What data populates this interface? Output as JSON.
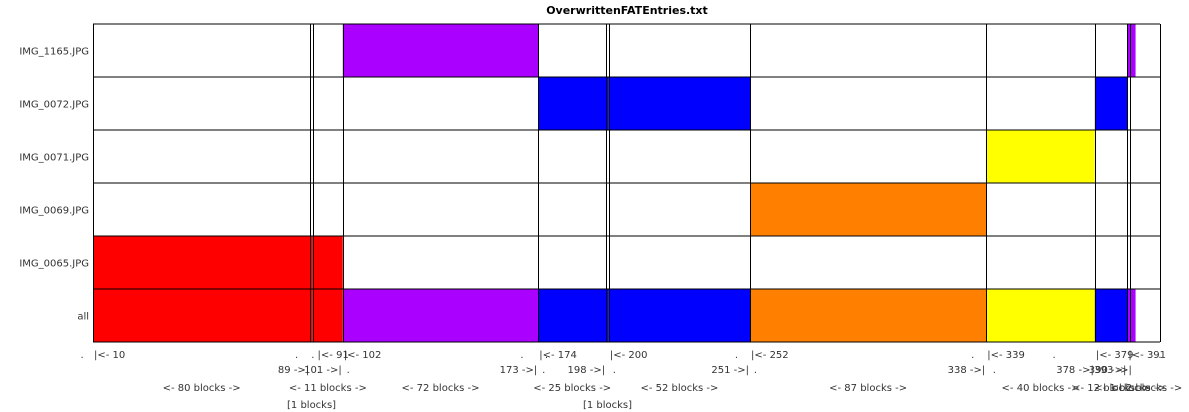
{
  "chart_data": {
    "type": "bar",
    "title": "OverwrittenFATEntries.txt",
    "xlim": [
      10,
      403
    ],
    "rows": [
      "all",
      "IMG_0065.JPG",
      "IMG_0069.JPG",
      "IMG_0071.JPG",
      "IMG_0072.JPG",
      "IMG_1165.JPG"
    ],
    "boundaries": [
      10,
      90,
      91,
      102,
      174,
      199,
      200,
      252,
      339,
      379,
      391,
      392,
      403
    ],
    "segments": [
      {
        "file": "IMG_0065.JPG",
        "start": 10,
        "end": 90,
        "color": "#ff0000"
      },
      {
        "file": "IMG_0065.JPG",
        "start": 90,
        "end": 91,
        "color": "#ff0000"
      },
      {
        "file": "IMG_0065.JPG",
        "start": 91,
        "end": 102,
        "color": "#ff0000"
      },
      {
        "file": "IMG_1165.JPG",
        "start": 102,
        "end": 174,
        "color": "#aa00ff"
      },
      {
        "file": "IMG_0072.JPG",
        "start": 174,
        "end": 199,
        "color": "#0000ff"
      },
      {
        "file": "IMG_0072.JPG",
        "start": 199,
        "end": 200,
        "color": "#0000ff"
      },
      {
        "file": "IMG_0072.JPG",
        "start": 200,
        "end": 252,
        "color": "#0000ff"
      },
      {
        "file": "IMG_0069.JPG",
        "start": 252,
        "end": 339,
        "color": "#ff7f00"
      },
      {
        "file": "IMG_0071.JPG",
        "start": 339,
        "end": 379,
        "color": "#ffff00"
      },
      {
        "file": "IMG_0072.JPG",
        "start": 379,
        "end": 391,
        "color": "#0000ff"
      },
      {
        "file": "IMG_1165.JPG",
        "start": 391,
        "end": 394,
        "color": "#aa00ff"
      }
    ],
    "start_labels": [
      {
        "value": 10,
        "text": "|<- 10"
      },
      {
        "value": 90,
        "text": ". |<- 91"
      },
      {
        "value": 102,
        "text": "|<- 102"
      },
      {
        "value": 174,
        "text": "|<- 174"
      },
      {
        "value": 200,
        "text": "|<- 200"
      },
      {
        "value": 252,
        "text": "|<- 252"
      },
      {
        "value": 339,
        "text": "|<- 339"
      },
      {
        "value": 379,
        "text": "|<- 379"
      },
      {
        "value": 391,
        "text": "|<- 391"
      }
    ],
    "end_labels": [
      {
        "value": 90,
        "text": "89 ->|"
      },
      {
        "value": 102,
        "text": "101 ->|"
      },
      {
        "value": 174,
        "text": "173 ->|"
      },
      {
        "value": 199,
        "text": "198 ->|"
      },
      {
        "value": 252,
        "text": "251 ->|"
      },
      {
        "value": 339,
        "text": "338 ->|"
      },
      {
        "value": 379,
        "text": "378 ->|"
      },
      {
        "value": 391,
        "text": "390 ->|"
      },
      {
        "value": 393,
        "text": "393 ->|"
      }
    ],
    "dot_labels": [
      {
        "value": 6,
        "row": 1,
        "text": "."
      },
      {
        "value": 85,
        "row": 1,
        "text": "."
      },
      {
        "value": 168,
        "row": 1,
        "text": "."
      },
      {
        "value": 177,
        "row": 1,
        "text": "."
      },
      {
        "value": 247,
        "row": 1,
        "text": "."
      },
      {
        "value": 334,
        "row": 1,
        "text": "."
      },
      {
        "value": 364,
        "row": 1,
        "text": "."
      },
      {
        "value": 403,
        "row": 1,
        "text": "."
      },
      {
        "value": 93,
        "row": 2,
        "text": "."
      },
      {
        "value": 104,
        "row": 2,
        "text": "."
      },
      {
        "value": 176,
        "row": 2,
        "text": "."
      },
      {
        "value": 202,
        "row": 2,
        "text": "."
      },
      {
        "value": 254,
        "row": 2,
        "text": "."
      },
      {
        "value": 342,
        "row": 2,
        "text": "."
      }
    ],
    "count_labels": [
      {
        "center": 50,
        "text": "<- 80 blocks ->"
      },
      {
        "center": 96.5,
        "text": "<- 11 blocks ->"
      },
      {
        "center": 138,
        "text": "<- 72 blocks ->"
      },
      {
        "center": 186.5,
        "text": "<- 25 blocks ->"
      },
      {
        "center": 226,
        "text": "<- 52 blocks ->"
      },
      {
        "center": 295.5,
        "text": "<- 87 blocks ->"
      },
      {
        "center": 359,
        "text": "<- 40 blocks ->"
      },
      {
        "center": 385,
        "text": "<- 12 blocks ->"
      },
      {
        "center": 392,
        "text": "<- 1 blocks ->"
      },
      {
        "center": 398,
        "text": "<- 2 blocks ->"
      }
    ],
    "note_labels": [
      {
        "center": 90.5,
        "text": "[1 blocks]"
      },
      {
        "center": 199.5,
        "text": "[1 blocks]"
      }
    ]
  }
}
